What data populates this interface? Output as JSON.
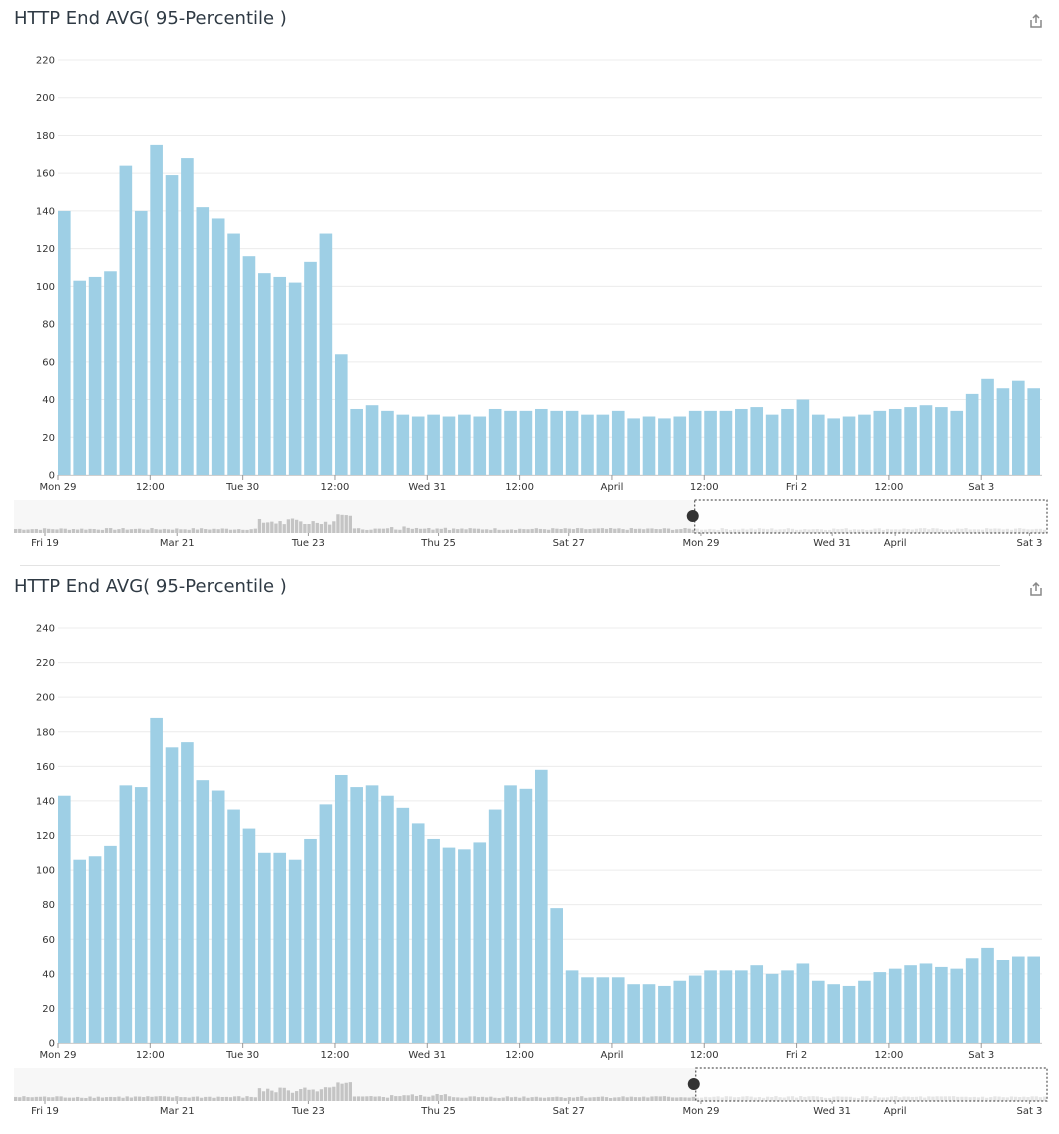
{
  "colors": {
    "bar": "#9ecfe5",
    "grid": "#ececec",
    "axis": "#333333",
    "nav_bar": "#c4c4c4",
    "nav_bar_selected": "#555555",
    "nav_bg": "#f7f7f7"
  },
  "icons": {
    "share": "share-icon"
  },
  "chart_data": [
    {
      "type": "bar",
      "title": "HTTP End AVG( 95-Percentile )",
      "ylim": [
        0,
        220
      ],
      "yticks": [
        0,
        20,
        40,
        60,
        80,
        100,
        120,
        140,
        160,
        180,
        200,
        220
      ],
      "grid": true,
      "values": [
        140,
        103,
        105,
        108,
        164,
        140,
        175,
        159,
        168,
        142,
        136,
        128,
        116,
        107,
        105,
        102,
        113,
        128,
        64,
        35,
        37,
        34,
        32,
        31,
        32,
        31,
        32,
        31,
        35,
        34,
        34,
        35,
        34,
        34,
        32,
        32,
        34,
        30,
        31,
        30,
        31,
        34,
        34,
        34,
        35,
        36,
        32,
        35,
        40,
        32,
        30,
        31,
        32,
        34,
        35,
        36,
        37,
        36,
        34,
        43,
        51,
        46,
        50,
        46
      ],
      "x_labels": [
        {
          "label": "Mon 29",
          "index": 0
        },
        {
          "label": "12:00",
          "index": 6
        },
        {
          "label": "Tue 30",
          "index": 12
        },
        {
          "label": "12:00",
          "index": 18
        },
        {
          "label": "Wed 31",
          "index": 24
        },
        {
          "label": "12:00",
          "index": 30
        },
        {
          "label": "April",
          "index": 36
        },
        {
          "label": "12:00",
          "index": 42
        },
        {
          "label": "Fri 2",
          "index": 48
        },
        {
          "label": "12:00",
          "index": 54
        },
        {
          "label": "Sat 3",
          "index": 60
        }
      ],
      "navigator": {
        "x_labels": [
          {
            "label": "Fri 19",
            "pos": 0.03
          },
          {
            "label": "Mar 21",
            "pos": 0.158
          },
          {
            "label": "Tue 23",
            "pos": 0.285
          },
          {
            "label": "Thu 25",
            "pos": 0.411
          },
          {
            "label": "Sat 27",
            "pos": 0.537
          },
          {
            "label": "Mon 29",
            "pos": 0.665
          },
          {
            "label": "Wed 31",
            "pos": 0.792
          },
          {
            "label": "April",
            "pos": 0.853
          },
          {
            "label": "Sat 3",
            "pos": 0.983
          }
        ],
        "selection": [
          0.659,
          1.0
        ]
      }
    },
    {
      "type": "bar",
      "title": "HTTP End AVG( 95-Percentile )",
      "ylim": [
        0,
        240
      ],
      "yticks": [
        0,
        20,
        40,
        60,
        80,
        100,
        120,
        140,
        160,
        180,
        200,
        220,
        240
      ],
      "grid": true,
      "values": [
        143,
        106,
        108,
        114,
        149,
        148,
        188,
        171,
        174,
        152,
        146,
        135,
        124,
        110,
        110,
        106,
        118,
        138,
        155,
        148,
        149,
        143,
        136,
        127,
        118,
        113,
        112,
        116,
        135,
        149,
        147,
        158,
        78,
        42,
        38,
        38,
        38,
        34,
        34,
        33,
        36,
        39,
        42,
        42,
        42,
        45,
        40,
        42,
        46,
        36,
        34,
        33,
        36,
        41,
        43,
        45,
        46,
        44,
        43,
        49,
        55,
        48,
        50,
        50
      ],
      "x_labels": [
        {
          "label": "Mon 29",
          "index": 0
        },
        {
          "label": "12:00",
          "index": 6
        },
        {
          "label": "Tue 30",
          "index": 12
        },
        {
          "label": "12:00",
          "index": 18
        },
        {
          "label": "Wed 31",
          "index": 24
        },
        {
          "label": "12:00",
          "index": 30
        },
        {
          "label": "April",
          "index": 36
        },
        {
          "label": "12:00",
          "index": 42
        },
        {
          "label": "Fri 2",
          "index": 48
        },
        {
          "label": "12:00",
          "index": 54
        },
        {
          "label": "Sat 3",
          "index": 60
        }
      ],
      "navigator": {
        "x_labels": [
          {
            "label": "Fri 19",
            "pos": 0.03
          },
          {
            "label": "Mar 21",
            "pos": 0.158
          },
          {
            "label": "Tue 23",
            "pos": 0.285
          },
          {
            "label": "Thu 25",
            "pos": 0.411
          },
          {
            "label": "Sat 27",
            "pos": 0.537
          },
          {
            "label": "Mon 29",
            "pos": 0.665
          },
          {
            "label": "Wed 31",
            "pos": 0.792
          },
          {
            "label": "April",
            "pos": 0.853
          },
          {
            "label": "Sat 3",
            "pos": 0.983
          }
        ],
        "selection": [
          0.66,
          1.0
        ]
      }
    }
  ]
}
